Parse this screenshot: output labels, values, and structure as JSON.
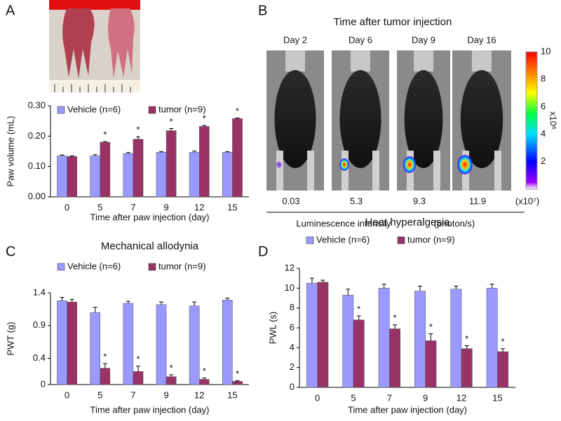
{
  "panel_labels": [
    "A",
    "B",
    "C",
    "D"
  ],
  "imaging": {
    "title": "Time after tumor injection",
    "days": [
      "Day 2",
      "Day 6",
      "Day 9",
      "Day 16"
    ],
    "intensities": [
      0.03,
      5.3,
      9.3,
      11.9
    ],
    "multiplier": "(x10⁷)",
    "axis_label": "Luminescence intensity",
    "unit": "(photon/s)",
    "colorbar": {
      "lim": [
        0,
        10
      ],
      "ticks": [
        2,
        4,
        6,
        8,
        10
      ],
      "label": "x10⁶"
    }
  },
  "chart_data": [
    {
      "type": "bar",
      "xlabel": "Time after paw injection (day)",
      "ylabel": "Paw volume (mL)",
      "categories": [
        "0",
        "5",
        "7",
        "9",
        "12",
        "15"
      ],
      "series": [
        {
          "name": "Vehicle (n=6)",
          "color": "#9999ff",
          "values": [
            0.135,
            0.135,
            0.143,
            0.147,
            0.147,
            0.147
          ],
          "errors": [
            0.003,
            0.004,
            0.003,
            0.002,
            0.004,
            0.002
          ]
        },
        {
          "name": "tumor (n=9)",
          "color": "#993366",
          "values": [
            0.133,
            0.18,
            0.19,
            0.218,
            0.232,
            0.258
          ],
          "errors": [
            0.002,
            0.002,
            0.008,
            0.007,
            0.003,
            0.002
          ],
          "markers": [
            null,
            "*",
            "*",
            "*",
            "*",
            "*"
          ]
        }
      ],
      "ylim": [
        0,
        0.3
      ],
      "yticks": [
        {
          "value": 0,
          "label": "0.00"
        },
        {
          "value": 0.1,
          "label": "0.10"
        },
        {
          "value": 0.2,
          "label": "0.20"
        },
        {
          "value": 0.3,
          "label": "0.30"
        }
      ],
      "legend": "top"
    },
    {
      "type": "bar",
      "title": "Mechanical allodynia",
      "xlabel": "Time after paw injection (day)",
      "ylabel": "PWT (g)",
      "categories": [
        "0",
        "5",
        "7",
        "9",
        "12",
        "15"
      ],
      "series": [
        {
          "name": "Vehicle (n=6)",
          "color": "#9999ff",
          "values": [
            1.28,
            1.1,
            1.24,
            1.22,
            1.2,
            1.29
          ],
          "errors": [
            0.05,
            0.08,
            0.03,
            0.04,
            0.06,
            0.03
          ]
        },
        {
          "name": "tumor (n=9)",
          "color": "#993366",
          "values": [
            1.26,
            0.25,
            0.2,
            0.12,
            0.08,
            0.05
          ],
          "errors": [
            0.04,
            0.07,
            0.08,
            0.03,
            0.02,
            0.01
          ],
          "markers": [
            null,
            "*",
            "*",
            "*",
            "*",
            "*"
          ]
        }
      ],
      "ylim": [
        0,
        1.4
      ],
      "yticks": [
        0,
        0.4,
        0.9,
        1.4
      ],
      "legend": "above"
    },
    {
      "type": "bar",
      "title": "Heat hyperalgesia",
      "xlabel": "Time after paw injection (day)",
      "ylabel": "PWL (s)",
      "categories": [
        "0",
        "5",
        "7",
        "9",
        "12",
        "15"
      ],
      "series": [
        {
          "name": "Vehicle (n=6)",
          "color": "#9999ff",
          "values": [
            10.5,
            9.3,
            10.0,
            9.7,
            9.9,
            10.0
          ],
          "errors": [
            0.5,
            0.6,
            0.4,
            0.5,
            0.3,
            0.4
          ]
        },
        {
          "name": "tumor (n=9)",
          "color": "#993366",
          "values": [
            10.6,
            6.8,
            5.9,
            4.7,
            3.9,
            3.6
          ],
          "errors": [
            0.2,
            0.4,
            0.4,
            0.7,
            0.3,
            0.3
          ],
          "markers": [
            null,
            "*",
            "*",
            "*",
            "*",
            "*"
          ]
        }
      ],
      "ylim": [
        0,
        12
      ],
      "yticks": [
        0,
        2,
        4,
        6,
        8,
        10,
        12
      ],
      "legend": "above"
    }
  ]
}
